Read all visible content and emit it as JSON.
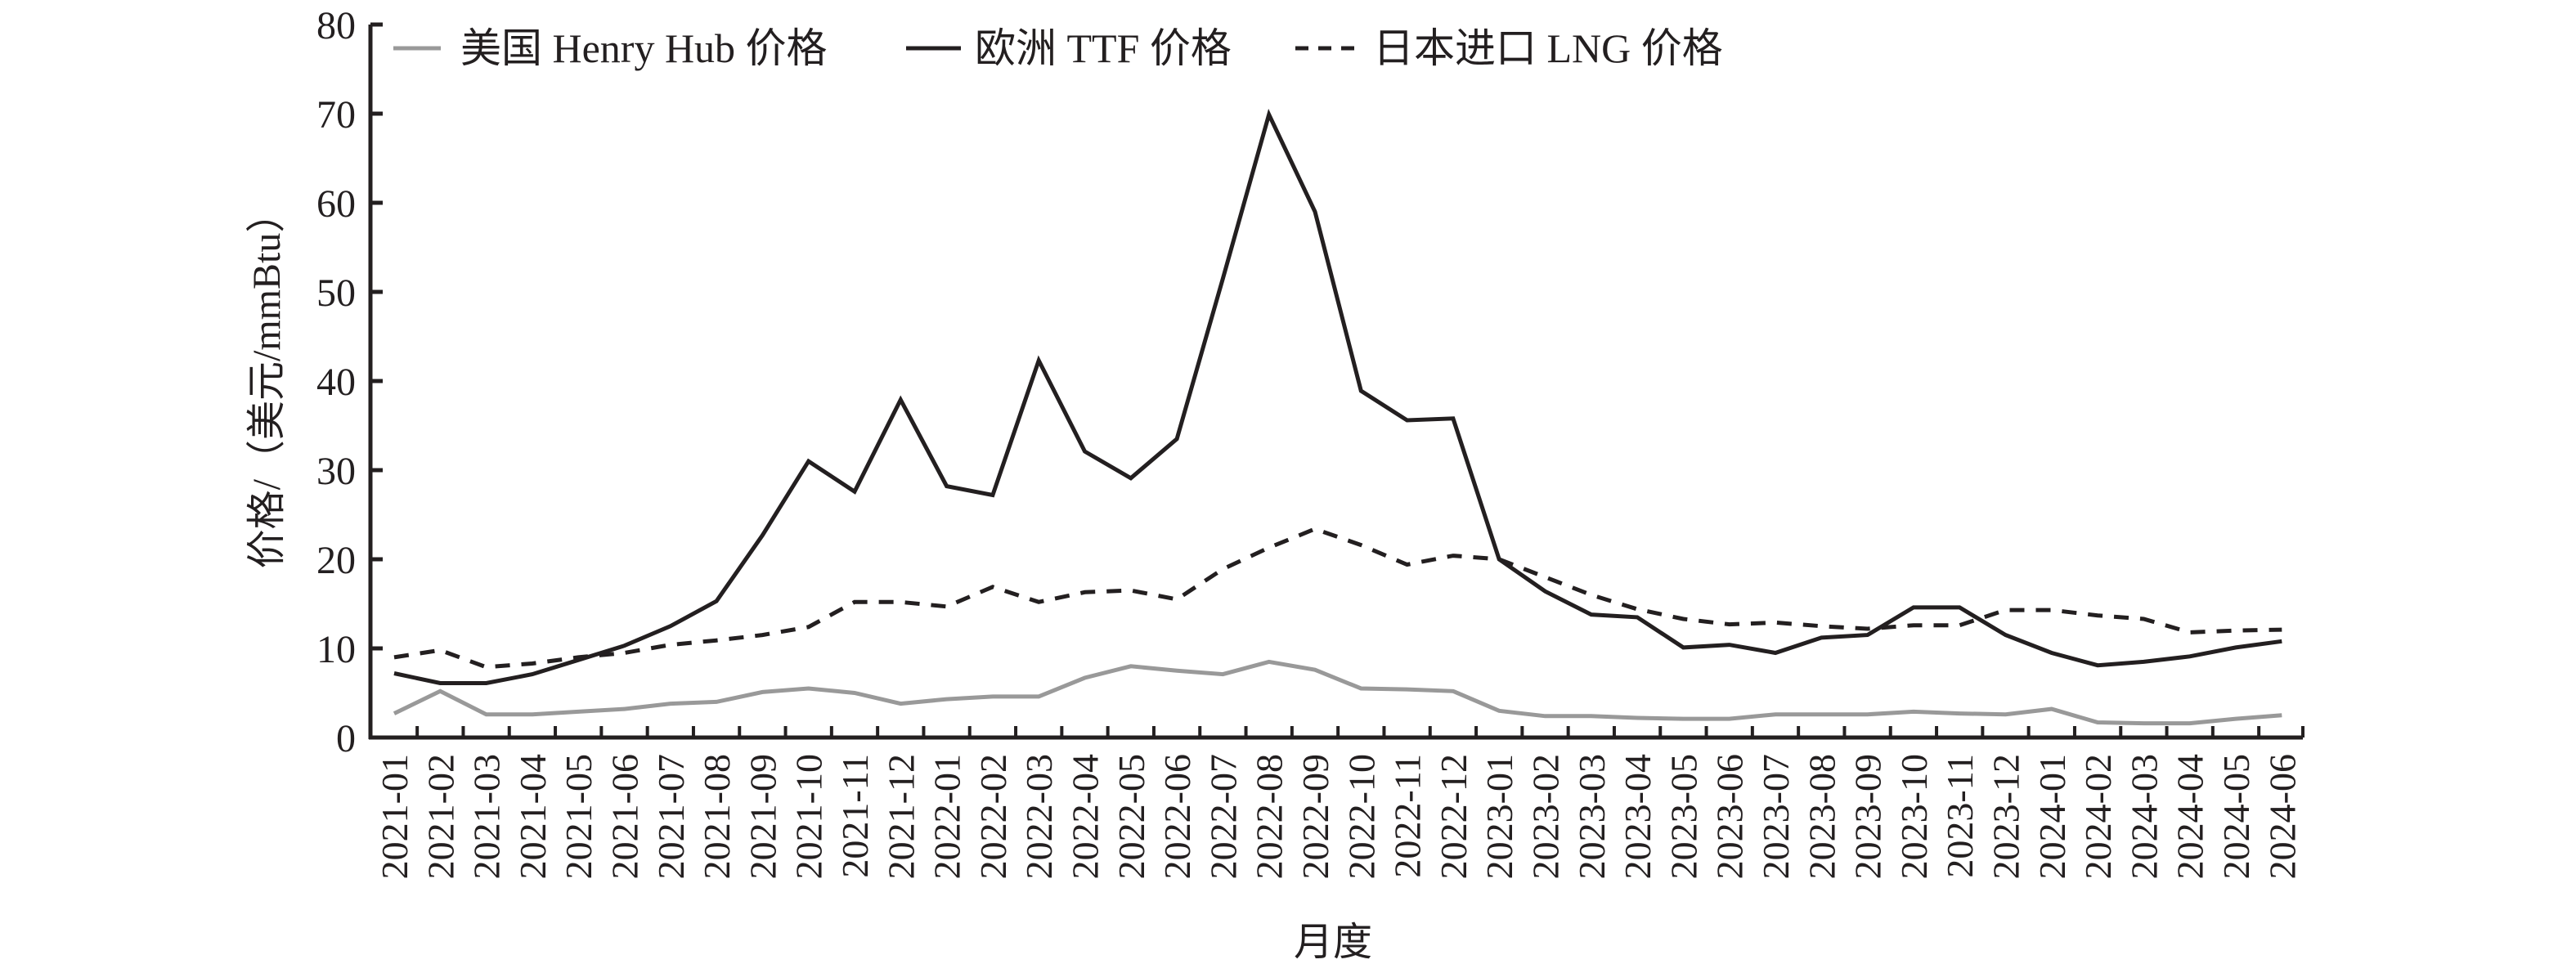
{
  "chart_data": {
    "type": "line",
    "title": "",
    "xlabel": "月度",
    "ylabel": "价格/（美元/mmBtu）",
    "ylim": [
      0,
      80
    ],
    "yticks": [
      0,
      10,
      20,
      30,
      40,
      50,
      60,
      70,
      80
    ],
    "grid": false,
    "legend_position": "top",
    "categories": [
      "2021-01",
      "2021-02",
      "2021-03",
      "2021-04",
      "2021-05",
      "2021-06",
      "2021-07",
      "2021-08",
      "2021-09",
      "2021-10",
      "2021-11",
      "2021-12",
      "2022-01",
      "2022-02",
      "2022-03",
      "2022-04",
      "2022-05",
      "2022-06",
      "2022-07",
      "2022-08",
      "2022-09",
      "2022-10",
      "2022-11",
      "2022-12",
      "2023-01",
      "2023-02",
      "2023-03",
      "2023-04",
      "2023-05",
      "2023-06",
      "2023-07",
      "2023-08",
      "2023-09",
      "2023-10",
      "2023-11",
      "2023-12",
      "2024-01",
      "2024-02",
      "2024-03",
      "2024-04",
      "2024-05",
      "2024-06"
    ],
    "series": [
      {
        "name": "美国 Henry Hub 价格",
        "color": "#999999",
        "dash": "solid",
        "values": [
          2.7,
          5.2,
          2.6,
          2.6,
          2.9,
          3.2,
          3.8,
          4.0,
          5.1,
          5.5,
          5.0,
          3.8,
          4.3,
          4.6,
          4.6,
          6.7,
          8.0,
          7.5,
          7.1,
          8.5,
          7.6,
          5.5,
          5.4,
          5.2,
          3.0,
          2.4,
          2.4,
          2.2,
          2.1,
          2.1,
          2.6,
          2.6,
          2.6,
          2.9,
          2.7,
          2.6,
          3.2,
          1.7,
          1.6,
          1.6,
          2.1,
          2.5
        ]
      },
      {
        "name": "欧洲 TTF 价格",
        "color": "#231f20",
        "dash": "solid",
        "values": [
          7.2,
          6.1,
          6.1,
          7.1,
          8.7,
          10.3,
          12.5,
          15.3,
          22.7,
          31.0,
          27.6,
          37.9,
          28.2,
          27.2,
          42.3,
          32.1,
          29.1,
          33.5,
          51.5,
          69.9,
          59.0,
          38.9,
          35.6,
          35.8,
          20.0,
          16.4,
          13.8,
          13.5,
          10.1,
          10.4,
          9.5,
          11.2,
          11.5,
          14.6,
          14.6,
          11.5,
          9.5,
          8.1,
          8.5,
          9.1,
          10.1,
          10.8
        ]
      },
      {
        "name": "日本进口 LNG 价格",
        "color": "#231f20",
        "dash": "dashed",
        "values": [
          9.0,
          9.8,
          7.9,
          8.3,
          9.0,
          9.5,
          10.4,
          10.9,
          11.5,
          12.4,
          15.2,
          15.2,
          14.7,
          16.9,
          15.2,
          16.3,
          16.5,
          15.5,
          18.9,
          21.3,
          23.4,
          21.6,
          19.4,
          20.4,
          20.0,
          18.0,
          16.0,
          14.4,
          13.3,
          12.7,
          12.9,
          12.5,
          12.2,
          12.6,
          12.6,
          14.3,
          14.3,
          13.7,
          13.3,
          11.8,
          12.0,
          12.1
        ]
      }
    ]
  },
  "legend": {
    "items": [
      {
        "label": "美国 Henry Hub 价格",
        "style": "solid-gray"
      },
      {
        "label": "欧洲 TTF 价格",
        "style": "solid-black"
      },
      {
        "label": "日本进口 LNG 价格",
        "style": "dashed-black"
      }
    ]
  },
  "axes": {
    "x_title": "月度",
    "y_title": "价格/（美元/mmBtu）"
  }
}
